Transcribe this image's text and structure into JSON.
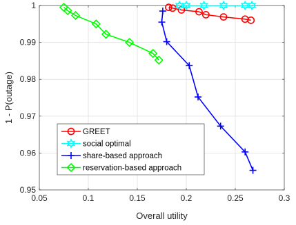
{
  "chart_data": {
    "type": "line",
    "xlabel": "Overall utility",
    "ylabel": "1 - P(outage)",
    "xlim": [
      0.05,
      0.3
    ],
    "ylim": [
      0.95,
      1.0
    ],
    "xticks": [
      0.05,
      0.1,
      0.15,
      0.2,
      0.25,
      0.3
    ],
    "xtick_labels": [
      "0.05",
      "0.1",
      "0.15",
      "0.2",
      "0.25",
      "0.3"
    ],
    "yticks": [
      0.95,
      0.96,
      0.97,
      0.98,
      0.99,
      1.0
    ],
    "ytick_labels": [
      "0.95",
      "0.96",
      "0.97",
      "0.98",
      "0.99",
      "1"
    ],
    "grid": true,
    "legend_position": "bottom-left",
    "series": [
      {
        "name": "GREET",
        "color": "#ff0000",
        "marker": "circle",
        "x": [
          0.182,
          0.186,
          0.195,
          0.213,
          0.22,
          0.238,
          0.26,
          0.266
        ],
        "y": [
          0.9995,
          0.9993,
          0.9988,
          0.9983,
          0.9975,
          0.9969,
          0.9963,
          0.996
        ]
      },
      {
        "name": "social optimal",
        "color": "#00ffff",
        "marker": "hexagram",
        "x": [
          0.193,
          0.2,
          0.218,
          0.238,
          0.26,
          0.267
        ],
        "y": [
          1.0,
          1.0,
          1.0,
          1.0,
          1.0,
          1.0
        ]
      },
      {
        "name": "share-based approach",
        "color": "#0000ff",
        "marker": "plus",
        "x": [
          0.176,
          0.175,
          0.18,
          0.203,
          0.212,
          0.235,
          0.26,
          0.268
        ],
        "y": [
          0.9985,
          0.9955,
          0.9902,
          0.9837,
          0.9752,
          0.9673,
          0.9603,
          0.9553
        ]
      },
      {
        "name": "reservation-based approach",
        "color": "#00ff00",
        "marker": "diamond",
        "x": [
          0.075,
          0.079,
          0.087,
          0.108,
          0.118,
          0.142,
          0.166,
          0.172
        ],
        "y": [
          0.9995,
          0.9986,
          0.9973,
          0.995,
          0.9922,
          0.99,
          0.987,
          0.9852
        ]
      }
    ]
  }
}
